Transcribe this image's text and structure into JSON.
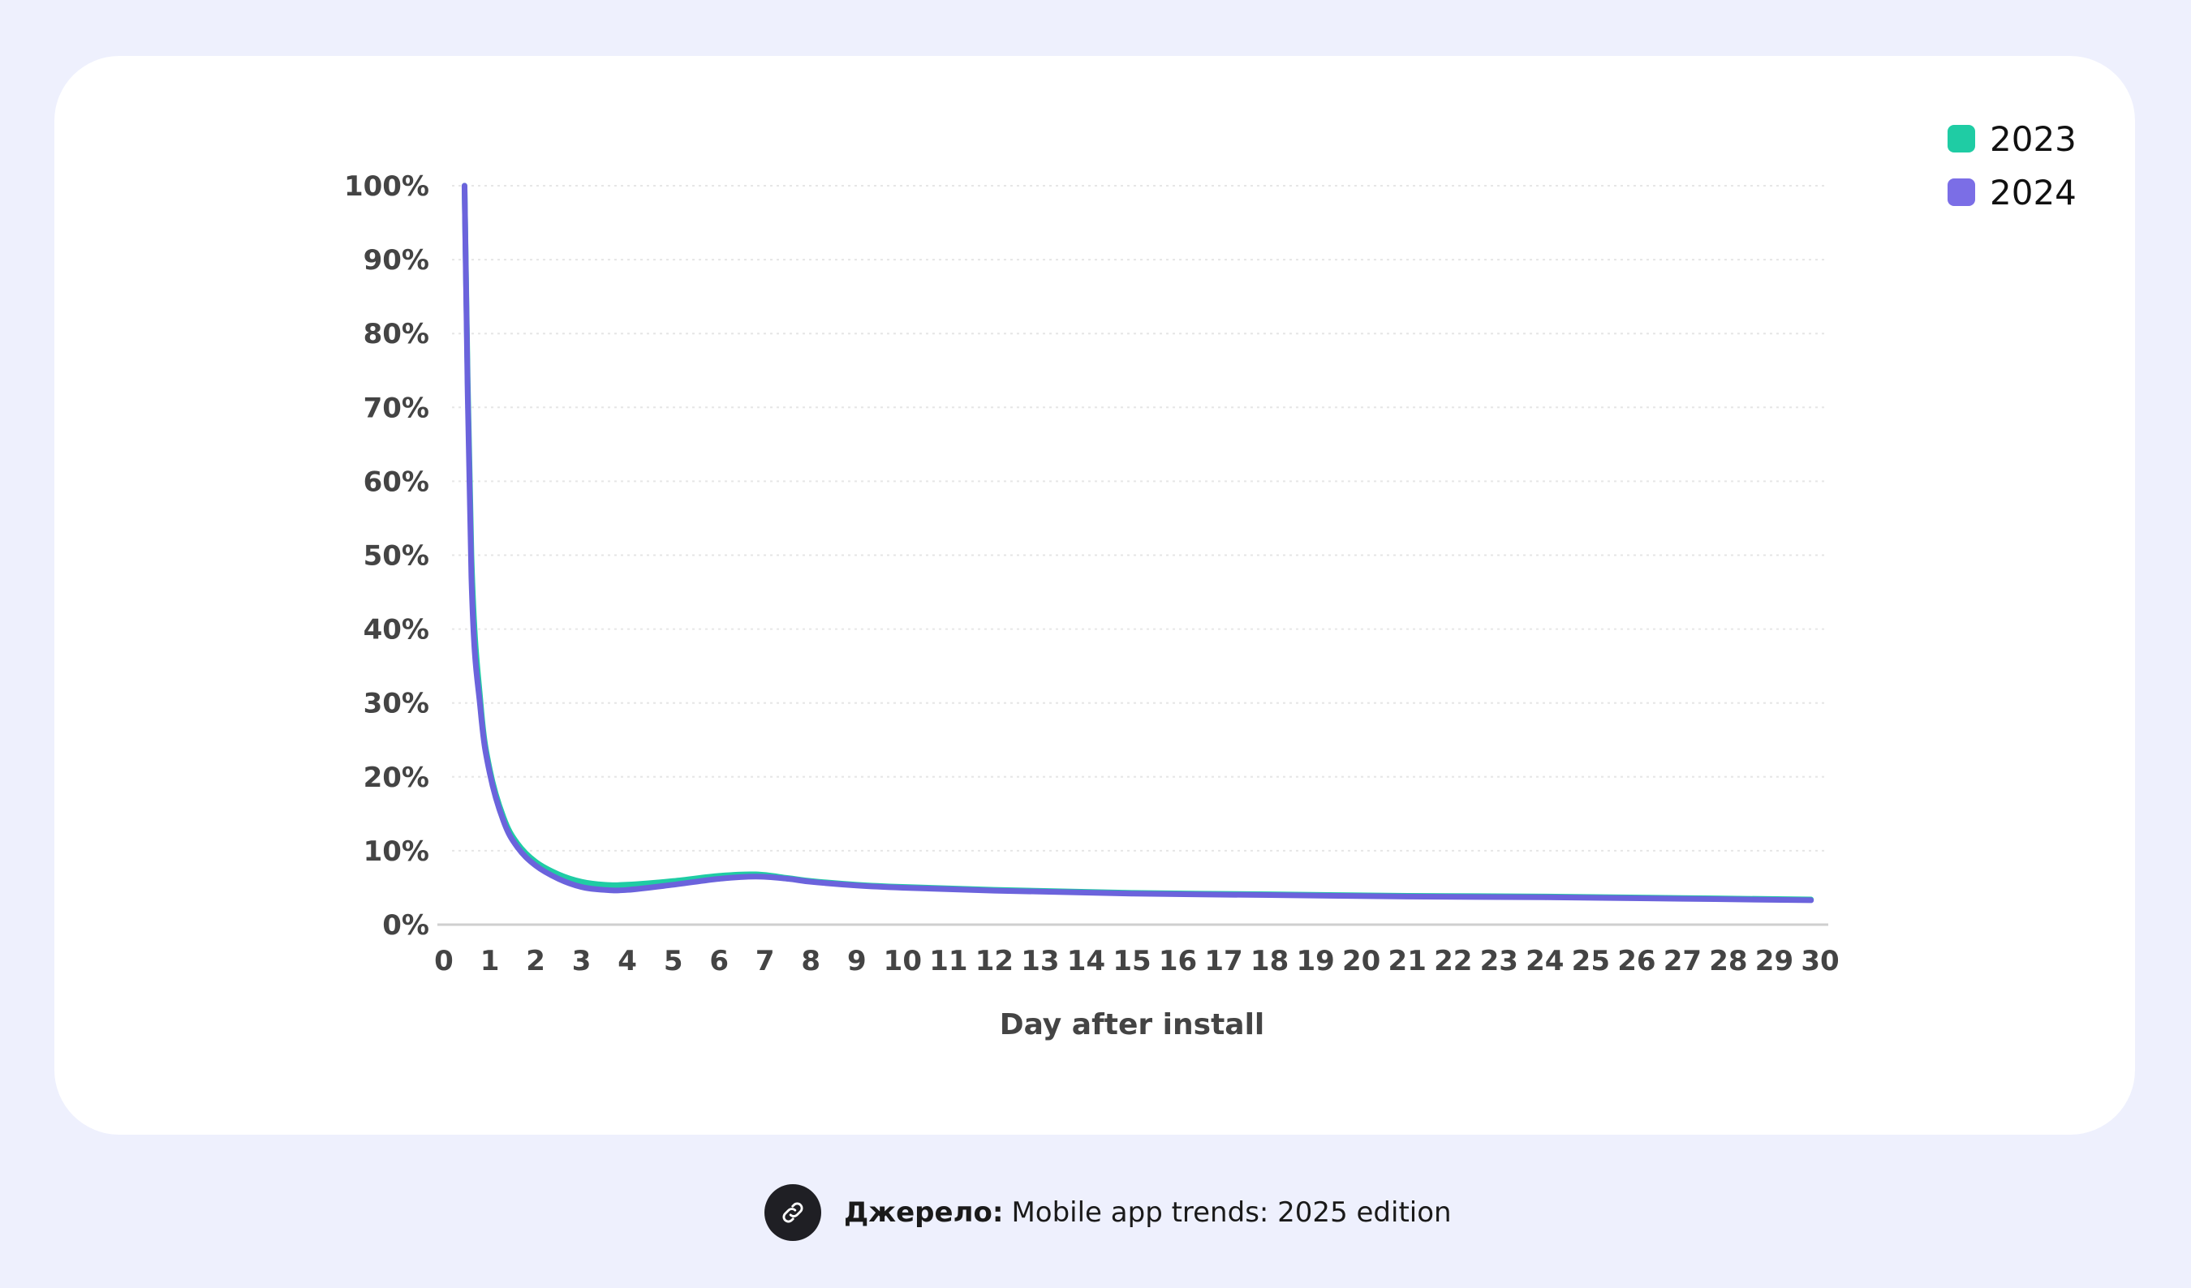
{
  "legend": {
    "items": [
      {
        "label": "2023",
        "color": "#1fcca4"
      },
      {
        "label": "2024",
        "color": "#7b6ee6"
      }
    ]
  },
  "source": {
    "label": "Джерело:",
    "text": "Mobile app trends: 2025 edition",
    "icon": "link-icon"
  },
  "chart_data": {
    "type": "line",
    "xlabel": "Day after install",
    "ylabel": "",
    "title": "",
    "xlim": [
      0,
      30
    ],
    "ylim": [
      0,
      100
    ],
    "x_ticks": [
      "0",
      "1",
      "2",
      "3",
      "4",
      "5",
      "6",
      "7",
      "8",
      "9",
      "10",
      "11",
      "12",
      "13",
      "14",
      "15",
      "16",
      "17",
      "18",
      "19",
      "20",
      "21",
      "22",
      "23",
      "24",
      "25",
      "26",
      "27",
      "28",
      "29",
      "30"
    ],
    "y_ticks": [
      "0%",
      "10%",
      "20%",
      "30%",
      "40%",
      "50%",
      "60%",
      "70%",
      "80%",
      "90%",
      "100%"
    ],
    "grid": "horizontal dotted",
    "legend_position": "top-right",
    "series": [
      {
        "name": "2023",
        "color": "#1fcca4",
        "points": [
          [
            0.45,
            100
          ],
          [
            0.6,
            50
          ],
          [
            0.8,
            30
          ],
          [
            1,
            21
          ],
          [
            1.3,
            14.5
          ],
          [
            1.6,
            11
          ],
          [
            2,
            8.5
          ],
          [
            2.5,
            6.8
          ],
          [
            3,
            5.8
          ],
          [
            3.5,
            5.4
          ],
          [
            4,
            5.4
          ],
          [
            5,
            5.9
          ],
          [
            6,
            6.6
          ],
          [
            6.8,
            6.8
          ],
          [
            7.5,
            6.3
          ],
          [
            8,
            5.9
          ],
          [
            9,
            5.4
          ],
          [
            10,
            5.1
          ],
          [
            12,
            4.7
          ],
          [
            15,
            4.3
          ],
          [
            18,
            4.1
          ],
          [
            21,
            3.9
          ],
          [
            24,
            3.8
          ],
          [
            27,
            3.6
          ],
          [
            29.8,
            3.4
          ]
        ]
      },
      {
        "name": "2024",
        "color": "#6b63dc",
        "points": [
          [
            0.45,
            100
          ],
          [
            0.6,
            47
          ],
          [
            0.8,
            29
          ],
          [
            1,
            20.5
          ],
          [
            1.3,
            14
          ],
          [
            1.6,
            10.5
          ],
          [
            2,
            8
          ],
          [
            2.5,
            6.2
          ],
          [
            3,
            5.1
          ],
          [
            3.5,
            4.7
          ],
          [
            4,
            4.7
          ],
          [
            5,
            5.4
          ],
          [
            6,
            6.2
          ],
          [
            6.8,
            6.5
          ],
          [
            7.5,
            6.2
          ],
          [
            8,
            5.8
          ],
          [
            9,
            5.3
          ],
          [
            10,
            5
          ],
          [
            12,
            4.6
          ],
          [
            15,
            4.2
          ],
          [
            18,
            4
          ],
          [
            21,
            3.8
          ],
          [
            24,
            3.7
          ],
          [
            27,
            3.5
          ],
          [
            29.8,
            3.3
          ]
        ]
      }
    ]
  }
}
